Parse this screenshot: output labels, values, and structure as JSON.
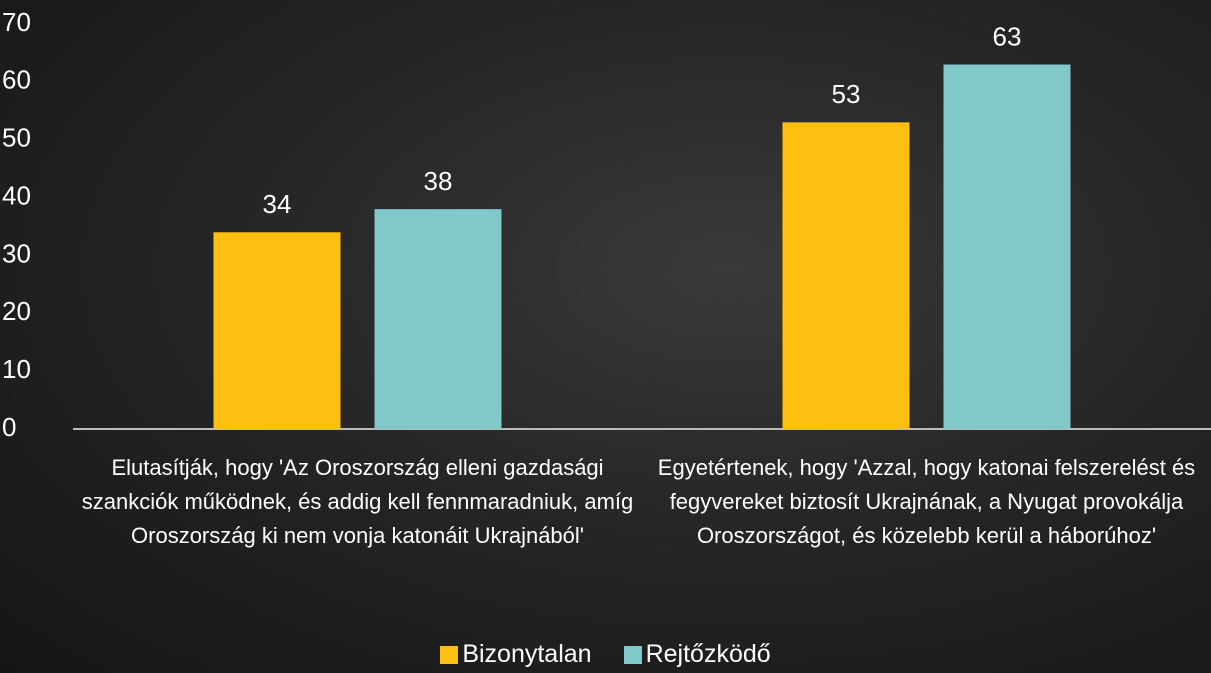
{
  "chart_data": {
    "type": "bar",
    "categories": [
      "Elutasítják, hogy 'Az Oroszország elleni gazdasági szankciók működnek, és addig kell fennmaradniuk, amíg Oroszország ki nem vonja katonáit Ukrajnából'",
      "Egyetértenek, hogy 'Azzal, hogy katonai felszerelést és fegyvereket biztosít Ukrajnának, a Nyugat provokálja Oroszországot, és közelebb kerül a háborúhoz'"
    ],
    "series": [
      {
        "name": "Bizonytalan",
        "color": "#fdc010",
        "values": [
          34,
          53
        ]
      },
      {
        "name": "Rejtőzködő",
        "color": "#80c8c9",
        "values": [
          38,
          63
        ]
      }
    ],
    "ylim": [
      0,
      70
    ],
    "yticks": [
      0,
      10,
      20,
      30,
      40,
      50,
      60,
      70
    ],
    "grid": false,
    "legend": "bottom"
  }
}
